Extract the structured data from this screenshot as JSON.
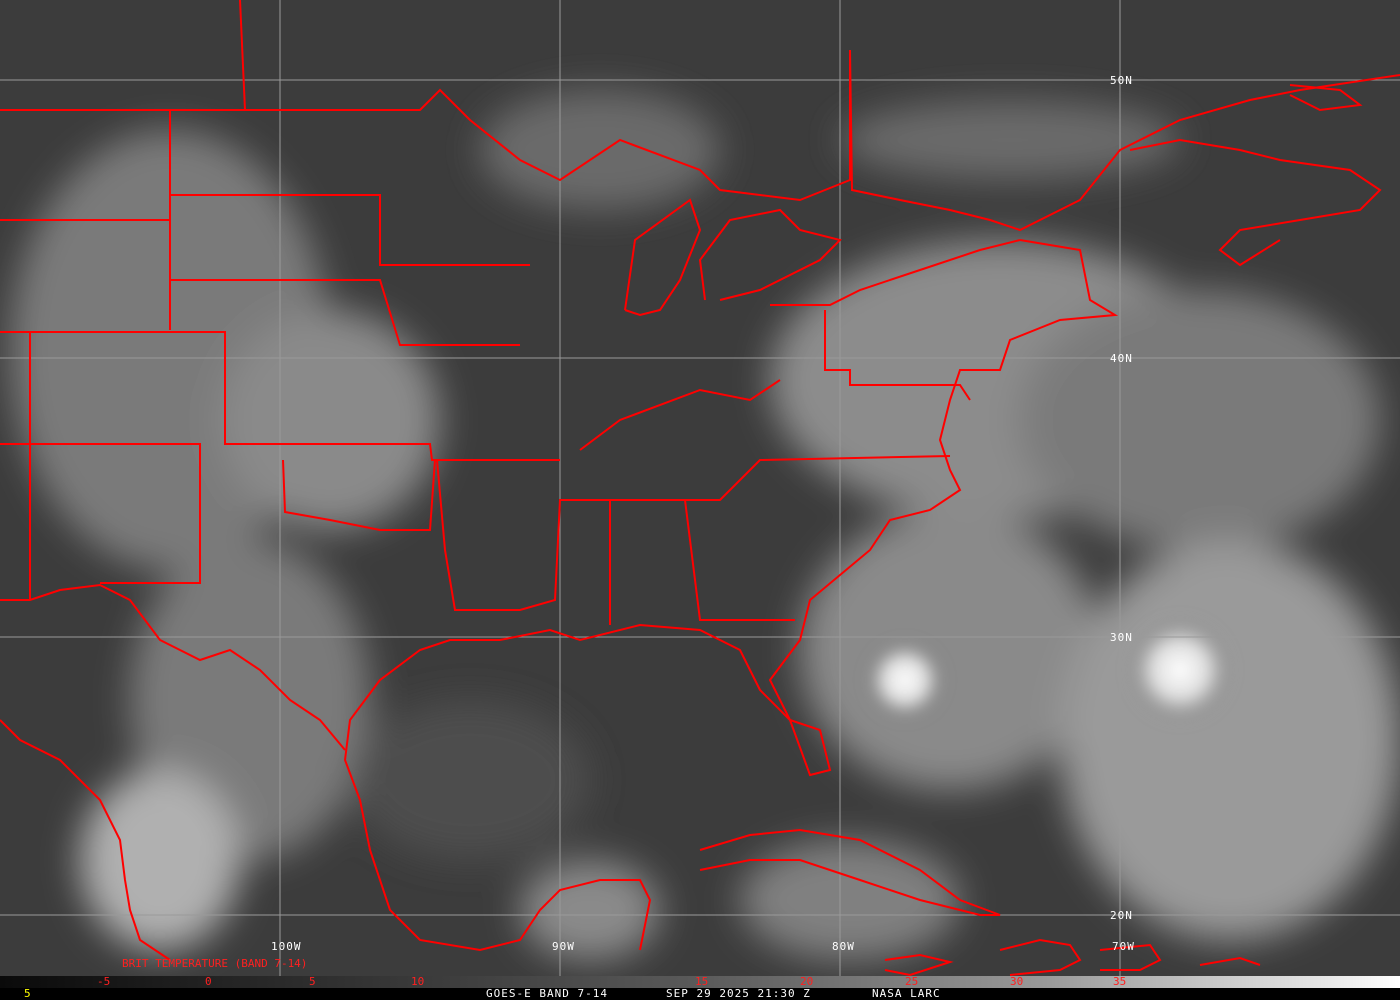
{
  "image": {
    "satellite": "GOES-E",
    "band": "BAND 7-14",
    "colors": {
      "borders": "#ff0000",
      "grid": "#9a9a9a",
      "footer_text": "#ffffff",
      "colorbar_labels": "#ff2020",
      "frame_number": "#ffff00"
    }
  },
  "grid": {
    "latitudes": [
      "50N",
      "40N",
      "30N",
      "20N"
    ],
    "longitudes": [
      "100W",
      "90W",
      "80W",
      "70W"
    ]
  },
  "colorbar": {
    "title": "BRIT TEMPERATURE (BAND 7-14)",
    "ticks": [
      "-5",
      "0",
      "5",
      "10",
      "15",
      "20",
      "25",
      "30",
      "35"
    ]
  },
  "footer": {
    "frame": "5",
    "product": "GOES-E BAND 7-14",
    "datetime": "SEP 29 2025 21:30 Z",
    "source": "NASA LARC"
  }
}
